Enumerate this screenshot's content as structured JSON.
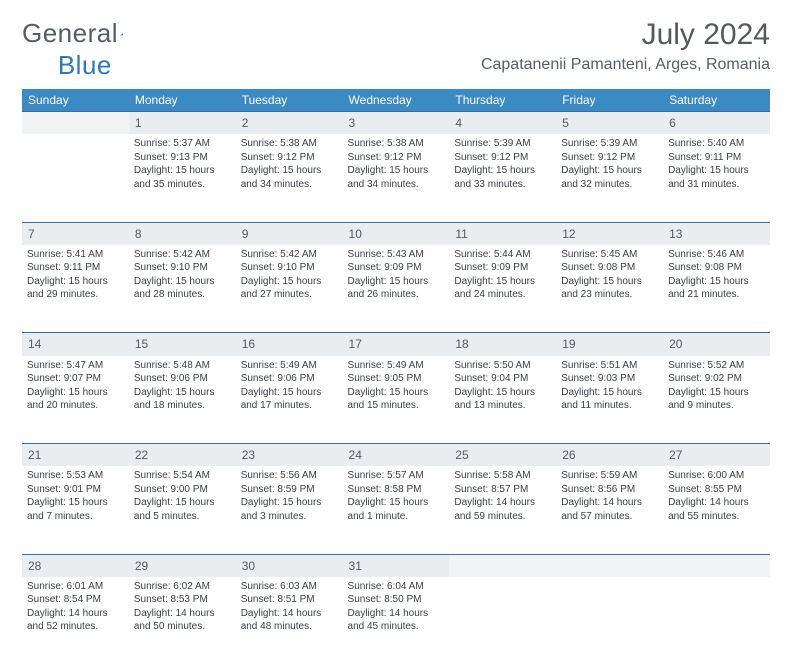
{
  "brand": {
    "part1": "General",
    "part2": "Blue"
  },
  "title": "July 2024",
  "location": "Capatanenii Pamanteni, Arges, Romania",
  "colors": {
    "header_bg": "#3b8ac4",
    "header_text": "#ffffff",
    "daynum_bg": "#e9edf0",
    "daynum_border": "#2f6ea8",
    "body_text": "#3b3f44",
    "title_text": "#555a60"
  },
  "daysOfWeek": [
    "Sunday",
    "Monday",
    "Tuesday",
    "Wednesday",
    "Thursday",
    "Friday",
    "Saturday"
  ],
  "weeks": [
    {
      "nums": [
        "",
        "1",
        "2",
        "3",
        "4",
        "5",
        "6"
      ],
      "cells": [
        null,
        {
          "sr": "Sunrise: 5:37 AM",
          "ss": "Sunset: 9:13 PM",
          "d1": "Daylight: 15 hours",
          "d2": "and 35 minutes."
        },
        {
          "sr": "Sunrise: 5:38 AM",
          "ss": "Sunset: 9:12 PM",
          "d1": "Daylight: 15 hours",
          "d2": "and 34 minutes."
        },
        {
          "sr": "Sunrise: 5:38 AM",
          "ss": "Sunset: 9:12 PM",
          "d1": "Daylight: 15 hours",
          "d2": "and 34 minutes."
        },
        {
          "sr": "Sunrise: 5:39 AM",
          "ss": "Sunset: 9:12 PM",
          "d1": "Daylight: 15 hours",
          "d2": "and 33 minutes."
        },
        {
          "sr": "Sunrise: 5:39 AM",
          "ss": "Sunset: 9:12 PM",
          "d1": "Daylight: 15 hours",
          "d2": "and 32 minutes."
        },
        {
          "sr": "Sunrise: 5:40 AM",
          "ss": "Sunset: 9:11 PM",
          "d1": "Daylight: 15 hours",
          "d2": "and 31 minutes."
        }
      ]
    },
    {
      "nums": [
        "7",
        "8",
        "9",
        "10",
        "11",
        "12",
        "13"
      ],
      "cells": [
        {
          "sr": "Sunrise: 5:41 AM",
          "ss": "Sunset: 9:11 PM",
          "d1": "Daylight: 15 hours",
          "d2": "and 29 minutes."
        },
        {
          "sr": "Sunrise: 5:42 AM",
          "ss": "Sunset: 9:10 PM",
          "d1": "Daylight: 15 hours",
          "d2": "and 28 minutes."
        },
        {
          "sr": "Sunrise: 5:42 AM",
          "ss": "Sunset: 9:10 PM",
          "d1": "Daylight: 15 hours",
          "d2": "and 27 minutes."
        },
        {
          "sr": "Sunrise: 5:43 AM",
          "ss": "Sunset: 9:09 PM",
          "d1": "Daylight: 15 hours",
          "d2": "and 26 minutes."
        },
        {
          "sr": "Sunrise: 5:44 AM",
          "ss": "Sunset: 9:09 PM",
          "d1": "Daylight: 15 hours",
          "d2": "and 24 minutes."
        },
        {
          "sr": "Sunrise: 5:45 AM",
          "ss": "Sunset: 9:08 PM",
          "d1": "Daylight: 15 hours",
          "d2": "and 23 minutes."
        },
        {
          "sr": "Sunrise: 5:46 AM",
          "ss": "Sunset: 9:08 PM",
          "d1": "Daylight: 15 hours",
          "d2": "and 21 minutes."
        }
      ]
    },
    {
      "nums": [
        "14",
        "15",
        "16",
        "17",
        "18",
        "19",
        "20"
      ],
      "cells": [
        {
          "sr": "Sunrise: 5:47 AM",
          "ss": "Sunset: 9:07 PM",
          "d1": "Daylight: 15 hours",
          "d2": "and 20 minutes."
        },
        {
          "sr": "Sunrise: 5:48 AM",
          "ss": "Sunset: 9:06 PM",
          "d1": "Daylight: 15 hours",
          "d2": "and 18 minutes."
        },
        {
          "sr": "Sunrise: 5:49 AM",
          "ss": "Sunset: 9:06 PM",
          "d1": "Daylight: 15 hours",
          "d2": "and 17 minutes."
        },
        {
          "sr": "Sunrise: 5:49 AM",
          "ss": "Sunset: 9:05 PM",
          "d1": "Daylight: 15 hours",
          "d2": "and 15 minutes."
        },
        {
          "sr": "Sunrise: 5:50 AM",
          "ss": "Sunset: 9:04 PM",
          "d1": "Daylight: 15 hours",
          "d2": "and 13 minutes."
        },
        {
          "sr": "Sunrise: 5:51 AM",
          "ss": "Sunset: 9:03 PM",
          "d1": "Daylight: 15 hours",
          "d2": "and 11 minutes."
        },
        {
          "sr": "Sunrise: 5:52 AM",
          "ss": "Sunset: 9:02 PM",
          "d1": "Daylight: 15 hours",
          "d2": "and 9 minutes."
        }
      ]
    },
    {
      "nums": [
        "21",
        "22",
        "23",
        "24",
        "25",
        "26",
        "27"
      ],
      "cells": [
        {
          "sr": "Sunrise: 5:53 AM",
          "ss": "Sunset: 9:01 PM",
          "d1": "Daylight: 15 hours",
          "d2": "and 7 minutes."
        },
        {
          "sr": "Sunrise: 5:54 AM",
          "ss": "Sunset: 9:00 PM",
          "d1": "Daylight: 15 hours",
          "d2": "and 5 minutes."
        },
        {
          "sr": "Sunrise: 5:56 AM",
          "ss": "Sunset: 8:59 PM",
          "d1": "Daylight: 15 hours",
          "d2": "and 3 minutes."
        },
        {
          "sr": "Sunrise: 5:57 AM",
          "ss": "Sunset: 8:58 PM",
          "d1": "Daylight: 15 hours",
          "d2": "and 1 minute."
        },
        {
          "sr": "Sunrise: 5:58 AM",
          "ss": "Sunset: 8:57 PM",
          "d1": "Daylight: 14 hours",
          "d2": "and 59 minutes."
        },
        {
          "sr": "Sunrise: 5:59 AM",
          "ss": "Sunset: 8:56 PM",
          "d1": "Daylight: 14 hours",
          "d2": "and 57 minutes."
        },
        {
          "sr": "Sunrise: 6:00 AM",
          "ss": "Sunset: 8:55 PM",
          "d1": "Daylight: 14 hours",
          "d2": "and 55 minutes."
        }
      ]
    },
    {
      "nums": [
        "28",
        "29",
        "30",
        "31",
        "",
        "",
        ""
      ],
      "cells": [
        {
          "sr": "Sunrise: 6:01 AM",
          "ss": "Sunset: 8:54 PM",
          "d1": "Daylight: 14 hours",
          "d2": "and 52 minutes."
        },
        {
          "sr": "Sunrise: 6:02 AM",
          "ss": "Sunset: 8:53 PM",
          "d1": "Daylight: 14 hours",
          "d2": "and 50 minutes."
        },
        {
          "sr": "Sunrise: 6:03 AM",
          "ss": "Sunset: 8:51 PM",
          "d1": "Daylight: 14 hours",
          "d2": "and 48 minutes."
        },
        {
          "sr": "Sunrise: 6:04 AM",
          "ss": "Sunset: 8:50 PM",
          "d1": "Daylight: 14 hours",
          "d2": "and 45 minutes."
        },
        null,
        null,
        null
      ]
    }
  ]
}
